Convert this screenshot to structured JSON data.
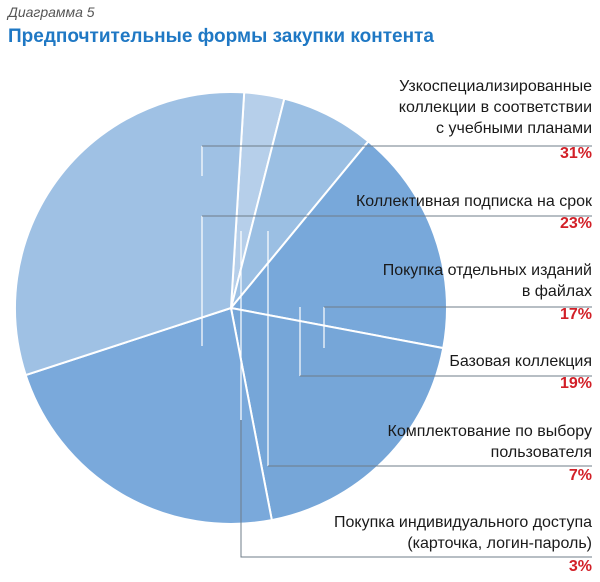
{
  "caption": "Диаграмма 5",
  "title": "Предпочтительные формы закупки контента",
  "colors": {
    "title": "#1f78c4",
    "percent": "#d22028",
    "leader": "#6f7c88"
  },
  "chart_data": {
    "type": "pie",
    "title": "Предпочтительные формы закупки контента",
    "categories": [
      "Узкоспециализированные коллекции в соответствии с учебными планами",
      "Коллективная подписка на срок",
      "Покупка отдельных изданий в файлах",
      "Базовая коллекция",
      "Комплектование по выбору пользователя",
      "Покупка индивидуального доступа (карточка, логин-пароль)"
    ],
    "values": [
      31,
      23,
      17,
      19,
      7,
      3
    ],
    "legend_position": "right"
  },
  "legend": [
    {
      "lines": [
        "Узкоспециализированные",
        "коллекции в соответствии",
        "с учебными планами"
      ],
      "pct": "31%"
    },
    {
      "lines": [
        "Коллективная подписка на срок"
      ],
      "pct": "23%"
    },
    {
      "lines": [
        "Покупка отдельных изданий",
        "в файлах"
      ],
      "pct": "17%"
    },
    {
      "lines": [
        "Базовая коллекция"
      ],
      "pct": "19%"
    },
    {
      "lines": [
        "Комплектование по выбору",
        "пользователя"
      ],
      "pct": "7%"
    },
    {
      "lines": [
        "Покупка индивидуального доступа",
        "(карточка, логин-пароль)"
      ],
      "pct": "3%"
    }
  ]
}
